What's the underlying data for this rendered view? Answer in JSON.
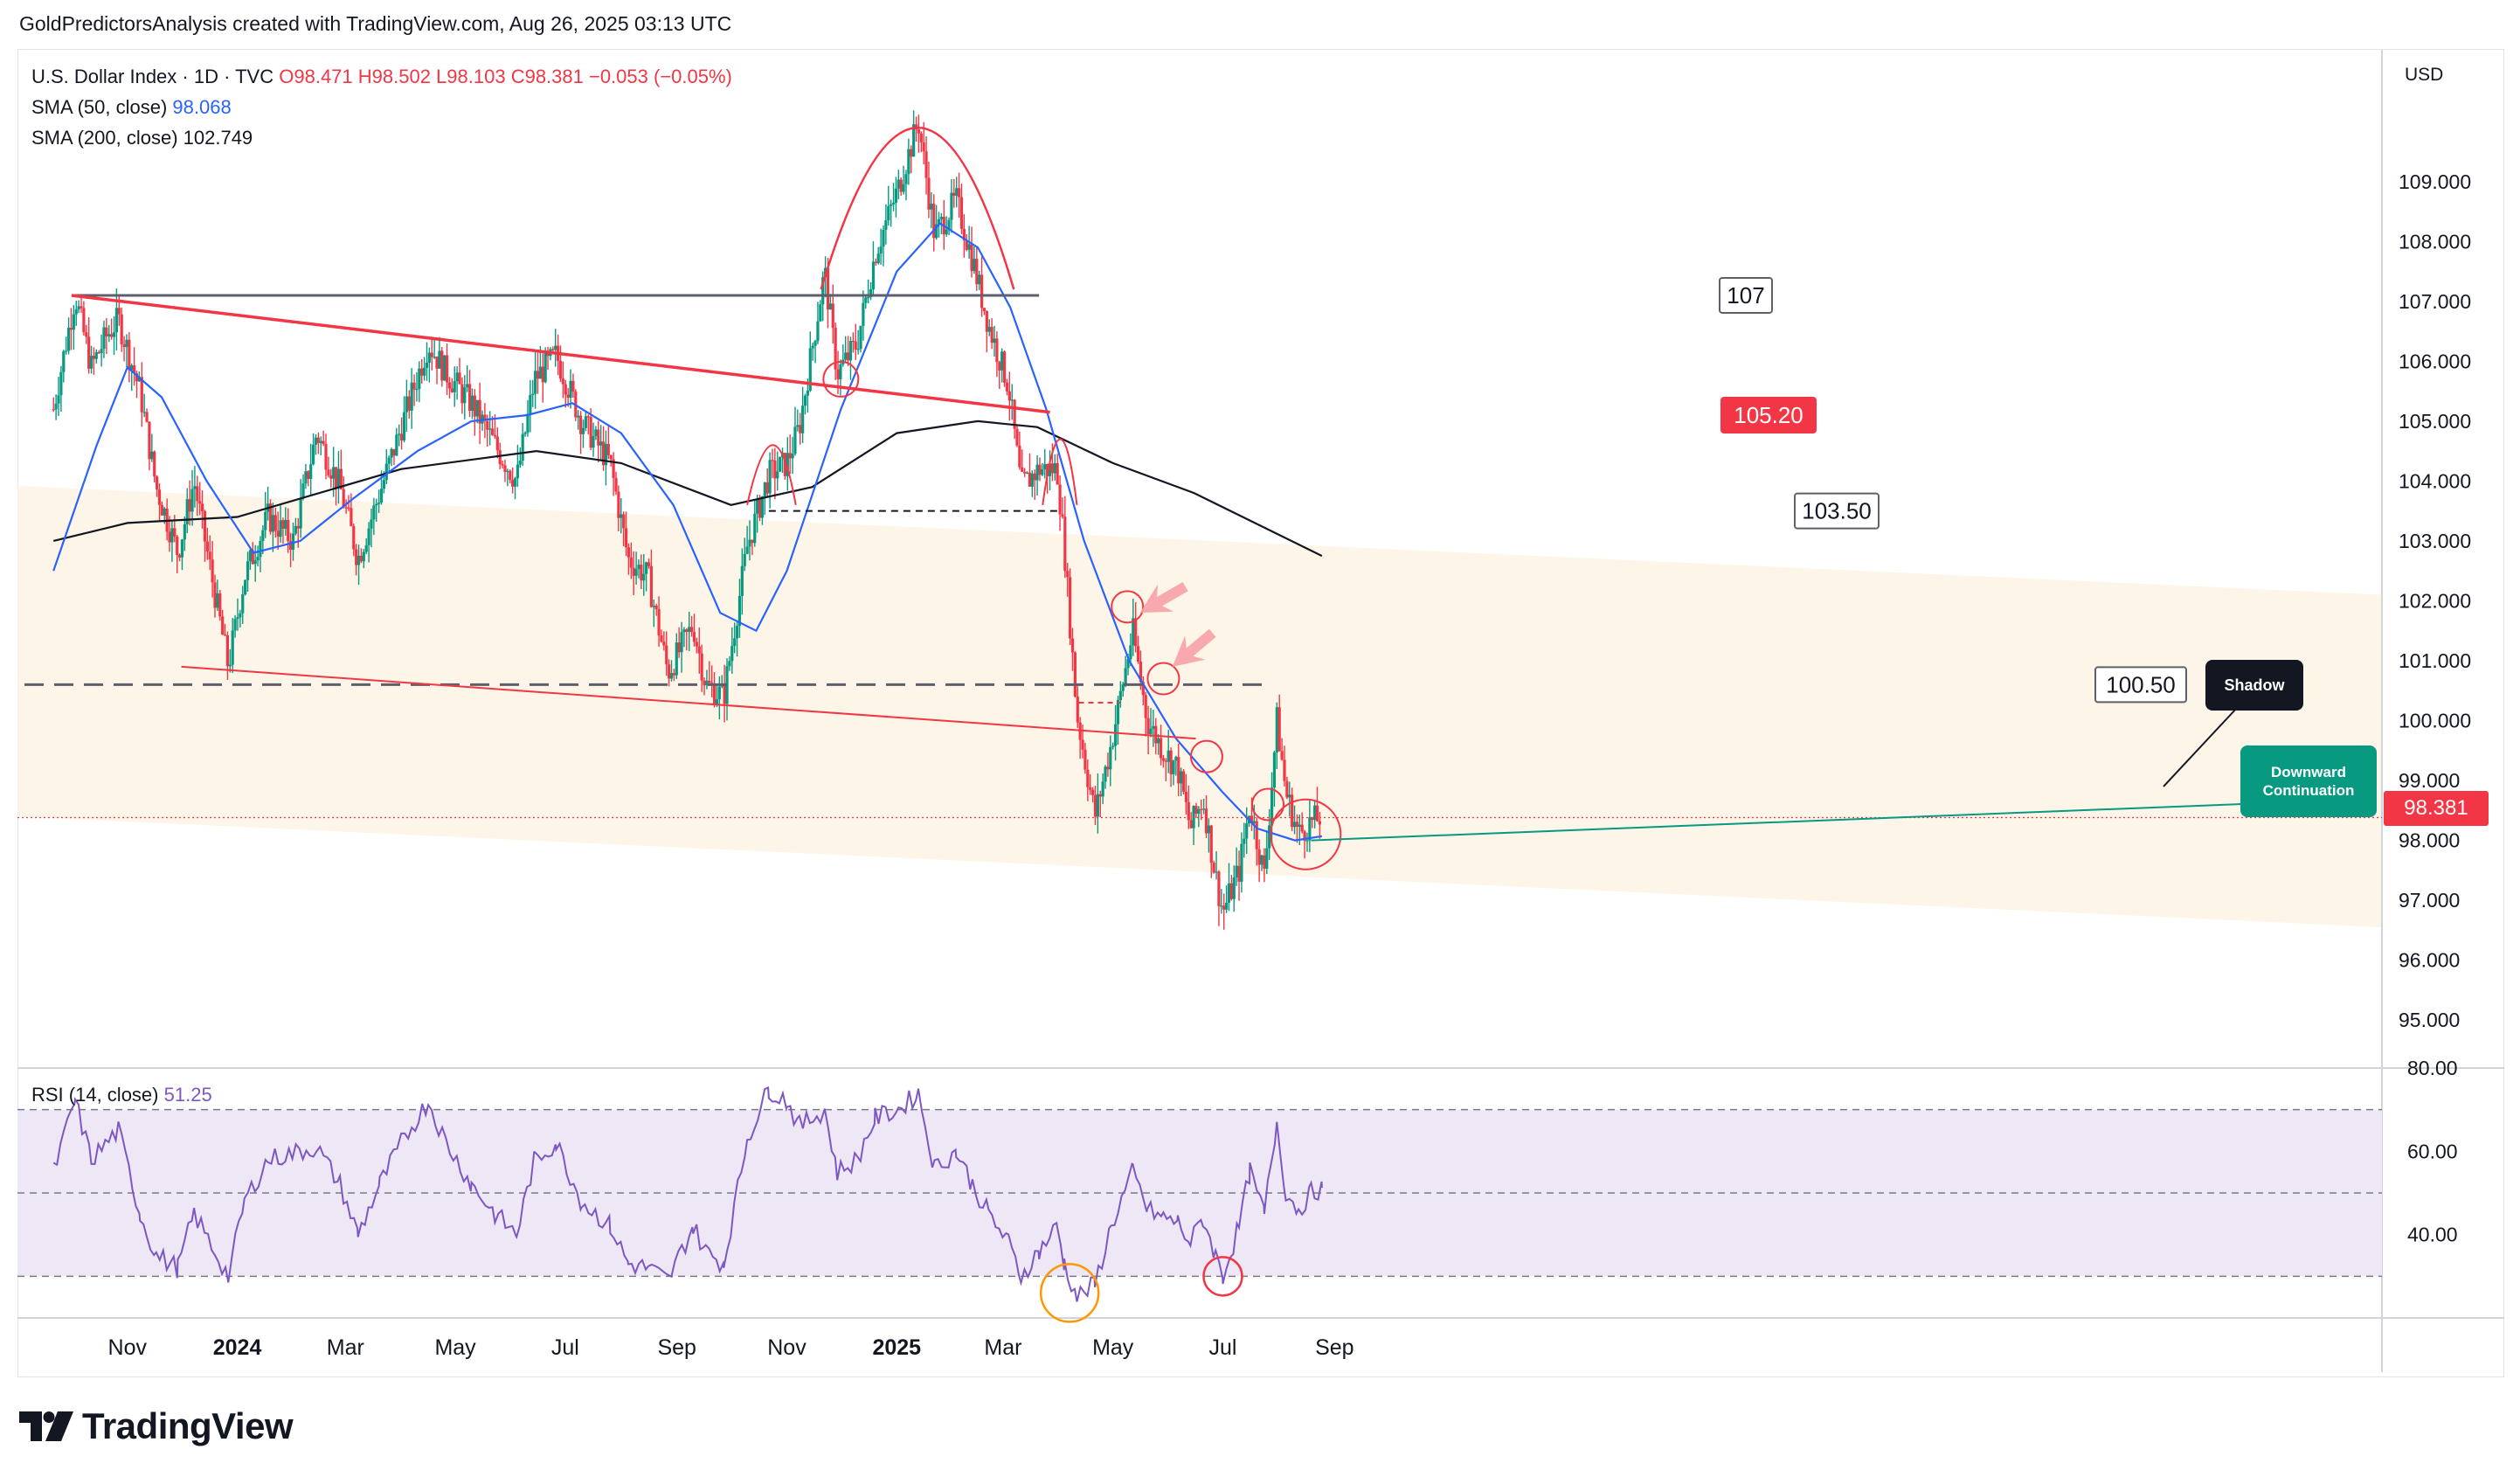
{
  "attribution": "GoldPredictorsAnalysis created with TradingView.com, Aug 26, 2025 03:13 UTC",
  "legend": {
    "symbol": "U.S. Dollar Index · 1D · TVC",
    "ohlc": "O98.471  H98.502  L98.103  C98.381  −0.053 (−0.05%)",
    "sma50_label": "SMA (50, close)",
    "sma50_value": "98.068",
    "sma200_label": "SMA (200, close)",
    "sma200_value": "102.749"
  },
  "rsi_legend": {
    "label": "RSI (14, close)",
    "value": "51.25"
  },
  "currency": "USD",
  "last_price": "98.381",
  "callouts": {
    "shadow": "Shadow",
    "downward": "Downward Continuation"
  },
  "brand": "TradingView",
  "colors": {
    "up": "#089981",
    "down": "#f23645",
    "sma50": "#2962ff",
    "sma200": "#131722",
    "rsi": "#7e57c2",
    "channel": "#fdf3e3",
    "rsi_band": "#ede7f6",
    "trend": "#f23645"
  },
  "chart_data": [
    {
      "type": "candlestick",
      "title": "U.S. Dollar Index · 1D · TVC",
      "ylim": [
        94.2,
        111.2
      ],
      "y_ticks": [
        "95.000",
        "96.000",
        "97.000",
        "98.000",
        "99.000",
        "100.000",
        "101.000",
        "102.000",
        "103.000",
        "104.000",
        "105.000",
        "106.000",
        "107.000",
        "108.000",
        "109.000"
      ],
      "x_ticks": [
        "Nov",
        "2024",
        "Mar",
        "May",
        "Jul",
        "Sep",
        "Nov",
        "2025",
        "Mar",
        "May",
        "Jul",
        "Sep"
      ],
      "close_path": [
        [
          "2023-09-21",
          105.2
        ],
        [
          "2023-10-03",
          107.1
        ],
        [
          "2023-10-12",
          105.9
        ],
        [
          "2023-10-20",
          106.4
        ],
        [
          "2023-10-27",
          106.7
        ],
        [
          "2023-11-08",
          105.5
        ],
        [
          "2023-11-17",
          103.9
        ],
        [
          "2023-11-29",
          102.8
        ],
        [
          "2023-12-08",
          104.0
        ],
        [
          "2023-12-27",
          100.9
        ],
        [
          "2024-01-05",
          102.4
        ],
        [
          "2024-01-18",
          103.4
        ],
        [
          "2024-02-01",
          103.0
        ],
        [
          "2024-02-14",
          104.8
        ],
        [
          "2024-02-27",
          103.9
        ],
        [
          "2024-03-08",
          102.7
        ],
        [
          "2024-03-20",
          103.8
        ],
        [
          "2024-04-01",
          104.9
        ],
        [
          "2024-04-16",
          106.3
        ],
        [
          "2024-04-26",
          105.8
        ],
        [
          "2024-05-10",
          105.3
        ],
        [
          "2024-05-23",
          104.6
        ],
        [
          "2024-06-04",
          104.0
        ],
        [
          "2024-06-14",
          105.7
        ],
        [
          "2024-06-26",
          106.1
        ],
        [
          "2024-07-10",
          105.0
        ],
        [
          "2024-07-26",
          104.3
        ],
        [
          "2024-08-05",
          102.7
        ],
        [
          "2024-08-16",
          102.4
        ],
        [
          "2024-08-27",
          100.8
        ],
        [
          "2024-09-10",
          101.6
        ],
        [
          "2024-09-17",
          100.6
        ],
        [
          "2024-09-27",
          100.4
        ],
        [
          "2024-10-10",
          102.9
        ],
        [
          "2024-10-22",
          104.1
        ],
        [
          "2024-11-01",
          104.3
        ],
        [
          "2024-11-08",
          104.9
        ],
        [
          "2024-11-22",
          107.5
        ],
        [
          "2024-11-29",
          105.8
        ],
        [
          "2024-12-10",
          106.3
        ],
        [
          "2024-12-20",
          107.8
        ],
        [
          "2025-01-02",
          108.9
        ],
        [
          "2025-01-13",
          110.0
        ],
        [
          "2025-01-22",
          108.1
        ],
        [
          "2025-02-03",
          108.7
        ],
        [
          "2025-02-12",
          107.7
        ],
        [
          "2025-02-21",
          106.6
        ],
        [
          "2025-03-04",
          105.6
        ],
        [
          "2025-03-11",
          103.9
        ],
        [
          "2025-03-21",
          104.2
        ],
        [
          "2025-03-31",
          104.2
        ],
        [
          "2025-04-04",
          102.9
        ],
        [
          "2025-04-11",
          100.1
        ],
        [
          "2025-04-21",
          98.4
        ],
        [
          "2025-04-30",
          99.6
        ],
        [
          "2025-05-12",
          101.5
        ],
        [
          "2025-05-20",
          100.0
        ],
        [
          "2025-05-29",
          99.5
        ],
        [
          "2025-06-06",
          99.2
        ],
        [
          "2025-06-13",
          98.2
        ],
        [
          "2025-06-20",
          98.7
        ],
        [
          "2025-06-27",
          97.4
        ],
        [
          "2025-07-01",
          96.8
        ],
        [
          "2025-07-10",
          97.5
        ],
        [
          "2025-07-16",
          98.6
        ],
        [
          "2025-07-24",
          97.4
        ],
        [
          "2025-07-31",
          100.0
        ],
        [
          "2025-08-05",
          98.8
        ],
        [
          "2025-08-12",
          98.1
        ],
        [
          "2025-08-19",
          98.3
        ],
        [
          "2025-08-25",
          98.4
        ]
      ],
      "sma50": [
        [
          "2023-09-21",
          102.5
        ],
        [
          "2023-10-15",
          104.6
        ],
        [
          "2023-11-01",
          105.9
        ],
        [
          "2023-11-20",
          105.4
        ],
        [
          "2023-12-15",
          104.0
        ],
        [
          "2024-01-10",
          102.8
        ],
        [
          "2024-02-05",
          103.0
        ],
        [
          "2024-03-05",
          103.7
        ],
        [
          "2024-04-10",
          104.5
        ],
        [
          "2024-05-10",
          105.0
        ],
        [
          "2024-06-10",
          105.1
        ],
        [
          "2024-07-05",
          105.3
        ],
        [
          "2024-08-01",
          104.8
        ],
        [
          "2024-08-30",
          103.6
        ],
        [
          "2024-09-25",
          101.8
        ],
        [
          "2024-10-15",
          101.5
        ],
        [
          "2024-11-01",
          102.5
        ],
        [
          "2024-12-01",
          105.2
        ],
        [
          "2025-01-01",
          107.5
        ],
        [
          "2025-01-25",
          108.3
        ],
        [
          "2025-02-15",
          107.9
        ],
        [
          "2025-03-05",
          106.9
        ],
        [
          "2025-03-25",
          105.2
        ],
        [
          "2025-04-15",
          103.0
        ],
        [
          "2025-05-10",
          101.0
        ],
        [
          "2025-06-05",
          99.7
        ],
        [
          "2025-07-01",
          98.8
        ],
        [
          "2025-07-20",
          98.2
        ],
        [
          "2025-08-10",
          98.0
        ],
        [
          "2025-08-25",
          98.07
        ]
      ],
      "sma200": [
        [
          "2023-09-21",
          103.0
        ],
        [
          "2023-11-01",
          103.3
        ],
        [
          "2024-01-01",
          103.4
        ],
        [
          "2024-04-01",
          104.2
        ],
        [
          "2024-06-15",
          104.5
        ],
        [
          "2024-08-01",
          104.3
        ],
        [
          "2024-10-01",
          103.6
        ],
        [
          "2024-11-15",
          103.9
        ],
        [
          "2025-01-01",
          104.8
        ],
        [
          "2025-02-15",
          105.0
        ],
        [
          "2025-03-20",
          104.9
        ],
        [
          "2025-05-01",
          104.3
        ],
        [
          "2025-06-15",
          103.8
        ],
        [
          "2025-08-25",
          102.75
        ]
      ],
      "annotations": [
        "107",
        "105.20",
        "103.50",
        "100.50"
      ]
    },
    {
      "type": "line",
      "title": "RSI (14, close)",
      "ylim": [
        20,
        80
      ],
      "y_ticks": [
        "40.00",
        "60.00",
        "80.00"
      ],
      "bands": [
        30,
        50,
        70
      ],
      "series": [
        {
          "values": [
            [
              "2023-09-21",
              55
            ],
            [
              "2023-10-03",
              72
            ],
            [
              "2023-10-12",
              58
            ],
            [
              "2023-10-27",
              65
            ],
            [
              "2023-11-08",
              45
            ],
            [
              "2023-11-17",
              35
            ],
            [
              "2023-11-29",
              32
            ],
            [
              "2023-12-08",
              45
            ],
            [
              "2023-12-27",
              30
            ],
            [
              "2024-01-05",
              48
            ],
            [
              "2024-01-18",
              58
            ],
            [
              "2024-02-14",
              61
            ],
            [
              "2024-02-27",
              52
            ],
            [
              "2024-03-08",
              40
            ],
            [
              "2024-03-20",
              52
            ],
            [
              "2024-04-01",
              62
            ],
            [
              "2024-04-16",
              72
            ],
            [
              "2024-04-26",
              62
            ],
            [
              "2024-05-10",
              52
            ],
            [
              "2024-05-23",
              45
            ],
            [
              "2024-06-04",
              40
            ],
            [
              "2024-06-14",
              58
            ],
            [
              "2024-06-26",
              62
            ],
            [
              "2024-07-10",
              48
            ],
            [
              "2024-07-26",
              42
            ],
            [
              "2024-08-05",
              33
            ],
            [
              "2024-08-16",
              32
            ],
            [
              "2024-08-27",
              29
            ],
            [
              "2024-09-10",
              42
            ],
            [
              "2024-09-17",
              36
            ],
            [
              "2024-09-27",
              33
            ],
            [
              "2024-10-10",
              63
            ],
            [
              "2024-10-22",
              75
            ],
            [
              "2024-11-01",
              72
            ],
            [
              "2024-11-08",
              66
            ],
            [
              "2024-11-22",
              70
            ],
            [
              "2024-11-29",
              55
            ],
            [
              "2024-12-10",
              58
            ],
            [
              "2024-12-20",
              68
            ],
            [
              "2025-01-02",
              70
            ],
            [
              "2025-01-13",
              74
            ],
            [
              "2025-01-22",
              56
            ],
            [
              "2025-02-03",
              60
            ],
            [
              "2025-02-12",
              52
            ],
            [
              "2025-02-21",
              45
            ],
            [
              "2025-03-04",
              38
            ],
            [
              "2025-03-11",
              30
            ],
            [
              "2025-03-21",
              36
            ],
            [
              "2025-03-31",
              42
            ],
            [
              "2025-04-04",
              33
            ],
            [
              "2025-04-11",
              25
            ],
            [
              "2025-04-21",
              28
            ],
            [
              "2025-04-30",
              42
            ],
            [
              "2025-05-12",
              55
            ],
            [
              "2025-05-20",
              46
            ],
            [
              "2025-05-29",
              44
            ],
            [
              "2025-06-06",
              43
            ],
            [
              "2025-06-13",
              38
            ],
            [
              "2025-06-20",
              44
            ],
            [
              "2025-06-27",
              35
            ],
            [
              "2025-07-01",
              30
            ],
            [
              "2025-07-10",
              42
            ],
            [
              "2025-07-16",
              55
            ],
            [
              "2025-07-24",
              45
            ],
            [
              "2025-07-31",
              67
            ],
            [
              "2025-08-05",
              50
            ],
            [
              "2025-08-12",
              46
            ],
            [
              "2025-08-19",
              50
            ],
            [
              "2025-08-25",
              51.25
            ]
          ]
        }
      ]
    }
  ]
}
